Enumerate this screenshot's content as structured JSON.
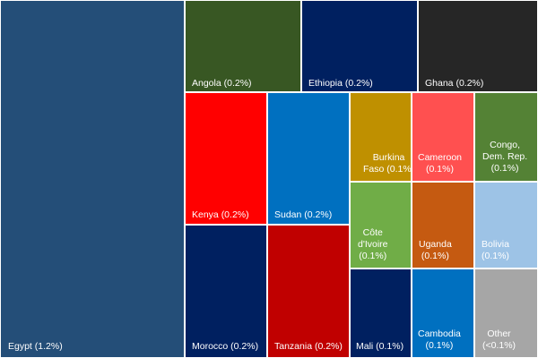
{
  "chart_data": {
    "type": "treemap",
    "title": "",
    "items": [
      {
        "label": "Egypt (1.2%)",
        "lines": [
          "Egypt (1.2%)"
        ],
        "value": 1.2,
        "color": "#244e78"
      },
      {
        "label": "Angola (0.2%)",
        "lines": [
          "Angola (0.2%)"
        ],
        "value": 0.2,
        "color": "#385723"
      },
      {
        "label": "Ethiopia (0.2%)",
        "lines": [
          "Ethiopia (0.2%)"
        ],
        "value": 0.2,
        "color": "#002060"
      },
      {
        "label": "Ghana (0.2%)",
        "lines": [
          "Ghana (0.2%)"
        ],
        "value": 0.2,
        "color": "#262626"
      },
      {
        "label": "Kenya (0.2%)",
        "lines": [
          "Kenya (0.2%)"
        ],
        "value": 0.2,
        "color": "#ff0000"
      },
      {
        "label": "Sudan (0.2%)",
        "lines": [
          "Sudan (0.2%)"
        ],
        "value": 0.2,
        "color": "#0070c0"
      },
      {
        "label": "Morocco (0.2%)",
        "lines": [
          "Morocco (0.2%)"
        ],
        "value": 0.2,
        "color": "#002060"
      },
      {
        "label": "Tanzania (0.2%)",
        "lines": [
          "Tanzania (0.2%)"
        ],
        "value": 0.2,
        "color": "#c00000"
      },
      {
        "label": "Burkina Faso (0.1%)",
        "lines": [
          "Burkina",
          "Faso (0.1%)"
        ],
        "value": 0.1,
        "color": "#bf9000"
      },
      {
        "label": "Cameroon (0.1%)",
        "lines": [
          "Cameroon",
          "(0.1%)"
        ],
        "value": 0.1,
        "color": "#ff5050"
      },
      {
        "label": "Congo, Dem. Rep. (0.1%)",
        "lines": [
          "Congo,",
          "Dem. Rep.",
          "(0.1%)"
        ],
        "value": 0.1,
        "color": "#548235"
      },
      {
        "label": "Côte d'Ivoire (0.1%)",
        "lines": [
          "Côte",
          "d'Ivoire",
          "(0.1%)"
        ],
        "value": 0.1,
        "color": "#70ad47"
      },
      {
        "label": "Uganda (0.1%)",
        "lines": [
          "Uganda",
          "(0.1%)"
        ],
        "value": 0.1,
        "color": "#c55a11"
      },
      {
        "label": "Bolivia (0.1%)",
        "lines": [
          "Bolivia",
          "(0.1%)"
        ],
        "value": 0.1,
        "color": "#9dc3e6"
      },
      {
        "label": "Mali (0.1%)",
        "lines": [
          "Mali (0.1%)"
        ],
        "value": 0.1,
        "color": "#002060"
      },
      {
        "label": "Cambodia (0.1%)",
        "lines": [
          "Cambodia",
          "(0.1%)"
        ],
        "value": 0.1,
        "color": "#0070c0"
      },
      {
        "label": "Other (<0.1%)",
        "lines": [
          "Other",
          "(<0.1%)"
        ],
        "value": 0.05,
        "color": "#a6a6a6"
      }
    ]
  }
}
